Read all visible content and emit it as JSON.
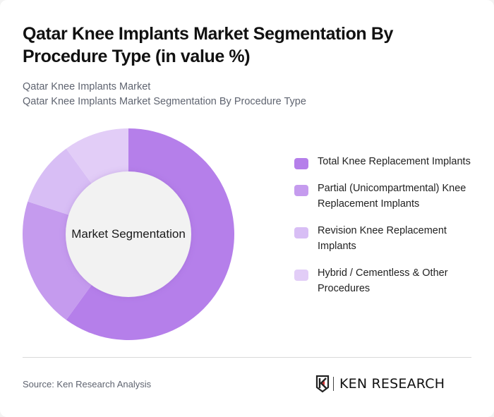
{
  "header": {
    "title": "Qatar Knee Implants Market Segmentation By Procedure Type (in value %)",
    "subtitle_line1": "Qatar Knee Implants Market",
    "subtitle_line2": "Qatar Knee Implants Market Segmentation By Procedure Type"
  },
  "chart": {
    "center_label": "Market Segmentation"
  },
  "legend": {
    "items": [
      {
        "label": "Total Knee Replacement Implants",
        "color": "#b57fea"
      },
      {
        "label": "Partial (Unicompartmental) Knee Replacement Implants",
        "color": "#c59bee"
      },
      {
        "label": "Revision Knee Replacement Implants",
        "color": "#d8bef5"
      },
      {
        "label": "Hybrid / Cementless & Other Procedures",
        "color": "#e2cdf7"
      }
    ]
  },
  "footer": {
    "source": "Source: Ken Research Analysis",
    "logo_text": "KEN RESEARCH"
  },
  "chart_data": {
    "type": "pie",
    "title": "Qatar Knee Implants Market Segmentation By Procedure Type (in value %)",
    "subtitle": "Qatar Knee Implants Market Segmentation By Procedure Type",
    "center_label": "Market Segmentation",
    "donut": true,
    "categories": [
      "Total Knee Replacement Implants",
      "Partial (Unicompartmental) Knee Replacement Implants",
      "Revision Knee Replacement Implants",
      "Hybrid / Cementless & Other Procedures"
    ],
    "values": [
      60,
      20,
      10,
      10
    ],
    "colors": [
      "#b57fea",
      "#c59bee",
      "#d8bef5",
      "#e2cdf7"
    ],
    "legend_position": "right",
    "start_angle": "12 o'clock, clockwise"
  }
}
